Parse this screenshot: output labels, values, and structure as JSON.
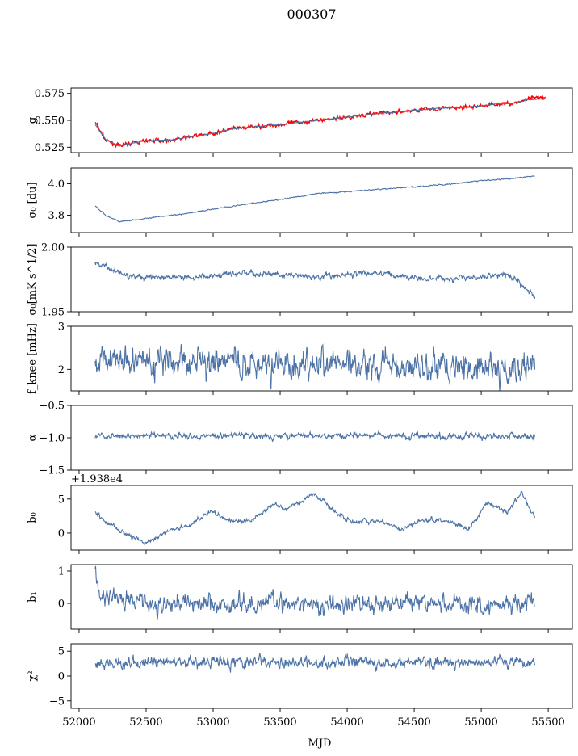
{
  "figure": {
    "title": "000307",
    "xlabel": "MJD",
    "x_tick_labels": [
      "52000",
      "52500",
      "53000",
      "53500",
      "54000",
      "54500",
      "55000",
      "55500"
    ],
    "colors": {
      "series": "#4c72a6",
      "highlight": "#ff0000",
      "axes": "#000000"
    }
  },
  "chart_data": [
    {
      "type": "line",
      "panel": "g",
      "ylabel": "g",
      "ylim": [
        0.52,
        0.58
      ],
      "y_tick_values": [
        0.525,
        0.55,
        0.575
      ],
      "y_tick_labels": [
        "0.525",
        "0.550",
        "0.575"
      ],
      "x": [
        52120,
        52200,
        52300,
        52400,
        52500,
        52700,
        53000,
        53150,
        53300,
        53500,
        53700,
        54000,
        54200,
        54400,
        54650,
        54900,
        55100,
        55250,
        55350,
        55480
      ],
      "series": [
        {
          "color": "#ff0000",
          "noise": 0.0015,
          "values": [
            0.548,
            0.531,
            0.526,
            0.529,
            0.531,
            0.532,
            0.538,
            0.542,
            0.544,
            0.546,
            0.549,
            0.553,
            0.556,
            0.558,
            0.561,
            0.562,
            0.565,
            0.566,
            0.57,
            0.571
          ]
        },
        {
          "color": "#4c72a6",
          "noise": 0.0003,
          "values": [
            0.546,
            0.532,
            0.526,
            0.529,
            0.531,
            0.532,
            0.538,
            0.542,
            0.544,
            0.546,
            0.549,
            0.553,
            0.556,
            0.558,
            0.561,
            0.562,
            0.565,
            0.566,
            0.569,
            0.57
          ]
        }
      ]
    },
    {
      "type": "line",
      "panel": "sigma0_du",
      "ylabel": "σ₀ [du]",
      "ylim": [
        3.69,
        4.1
      ],
      "y_tick_values": [
        3.8,
        4.0
      ],
      "y_tick_labels": [
        "3.8",
        "4.0"
      ],
      "x": [
        52120,
        52200,
        52300,
        52500,
        52800,
        53000,
        53500,
        53800,
        54000,
        54500,
        54800,
        55000,
        55200,
        55400
      ],
      "series": [
        {
          "color": "#4c72a6",
          "noise": 0.003,
          "values": [
            3.86,
            3.8,
            3.76,
            3.78,
            3.81,
            3.84,
            3.9,
            3.94,
            3.95,
            3.98,
            4.0,
            4.02,
            4.03,
            4.05
          ]
        }
      ]
    },
    {
      "type": "line",
      "panel": "sigma0_mK",
      "ylabel": "σ₀[mK s^1/2]",
      "ylim": [
        1.95,
        2.0
      ],
      "y_tick_values": [
        1.95,
        2.0
      ],
      "y_tick_labels": [
        "1.95",
        "2.00"
      ],
      "x": [
        52120,
        52200,
        52400,
        52600,
        52800,
        53000,
        53200,
        53400,
        53600,
        53800,
        54000,
        54200,
        54400,
        54600,
        54800,
        55000,
        55200,
        55250,
        55400
      ],
      "series": [
        {
          "color": "#4c72a6",
          "noise": 0.002,
          "values": [
            1.988,
            1.984,
            1.978,
            1.976,
            1.977,
            1.978,
            1.98,
            1.979,
            1.978,
            1.977,
            1.979,
            1.98,
            1.978,
            1.976,
            1.976,
            1.977,
            1.978,
            1.976,
            1.961
          ]
        }
      ]
    },
    {
      "type": "line",
      "panel": "fknee",
      "ylabel": "f_knee [mHz]",
      "ylim": [
        1.5,
        3.0
      ],
      "y_tick_values": [
        2,
        3
      ],
      "y_tick_labels": [
        "2",
        "3"
      ],
      "x": [
        52120,
        52500,
        53000,
        53500,
        54000,
        54500,
        55000,
        55400
      ],
      "series": [
        {
          "color": "#4c72a6",
          "noise": 0.3,
          "values": [
            2.3,
            2.2,
            2.15,
            2.15,
            2.1,
            2.1,
            2.05,
            2.05
          ]
        }
      ]
    },
    {
      "type": "line",
      "panel": "alpha",
      "ylabel": "α",
      "ylim": [
        -1.5,
        -0.5
      ],
      "y_tick_values": [
        -1.5,
        -1.0,
        -0.5
      ],
      "y_tick_labels": [
        "−1.5",
        "−1.0",
        "−0.5"
      ],
      "x": [
        52120,
        52500,
        53000,
        53500,
        54000,
        54500,
        55000,
        55400
      ],
      "series": [
        {
          "color": "#4c72a6",
          "noise": 0.04,
          "values": [
            -0.98,
            -0.97,
            -0.97,
            -0.97,
            -0.97,
            -0.97,
            -0.97,
            -0.97
          ]
        }
      ]
    },
    {
      "type": "line",
      "panel": "b0",
      "ylabel": "b₀",
      "offset_text": "+1.938e4",
      "ylim": [
        -2.5,
        7.0
      ],
      "y_tick_values": [
        0,
        5
      ],
      "y_tick_labels": [
        "0",
        "5"
      ],
      "x": [
        52120,
        52200,
        52300,
        52400,
        52500,
        52650,
        52800,
        53000,
        53150,
        53300,
        53450,
        53550,
        53750,
        53900,
        54050,
        54250,
        54400,
        54550,
        54750,
        54900,
        55050,
        55200,
        55300,
        55400
      ],
      "series": [
        {
          "color": "#4c72a6",
          "noise": 0.3,
          "values": [
            3.0,
            1.5,
            0.5,
            -0.5,
            -1.5,
            0.2,
            1.0,
            3.2,
            1.6,
            2.0,
            4.2,
            3.5,
            5.8,
            3.4,
            1.5,
            1.8,
            0.5,
            2.0,
            1.8,
            0.5,
            4.5,
            3.0,
            6.0,
            2.0
          ]
        }
      ]
    },
    {
      "type": "line",
      "panel": "b1",
      "ylabel": "b₁",
      "ylim": [
        -0.8,
        1.2
      ],
      "y_tick_values": [
        0,
        1
      ],
      "y_tick_labels": [
        "0",
        "1"
      ],
      "x": [
        52120,
        52140,
        52500,
        53000,
        53500,
        54000,
        54500,
        55000,
        55400
      ],
      "series": [
        {
          "color": "#4c72a6",
          "noise": 0.25,
          "values": [
            1.1,
            0.3,
            0.0,
            0.0,
            0.0,
            0.0,
            0.0,
            0.0,
            0.0
          ]
        }
      ]
    },
    {
      "type": "line",
      "panel": "chi2",
      "ylabel": "χ²",
      "ylim": [
        -6.5,
        6.5
      ],
      "y_tick_values": [
        -5,
        0,
        5
      ],
      "y_tick_labels": [
        "−5",
        "0",
        "5"
      ],
      "x": [
        52120,
        52500,
        53000,
        53500,
        54000,
        54500,
        55000,
        55400
      ],
      "series": [
        {
          "color": "#4c72a6",
          "noise": 1.0,
          "values": [
            2.5,
            2.8,
            2.8,
            2.7,
            2.6,
            2.7,
            2.8,
            3.0
          ]
        }
      ]
    }
  ]
}
